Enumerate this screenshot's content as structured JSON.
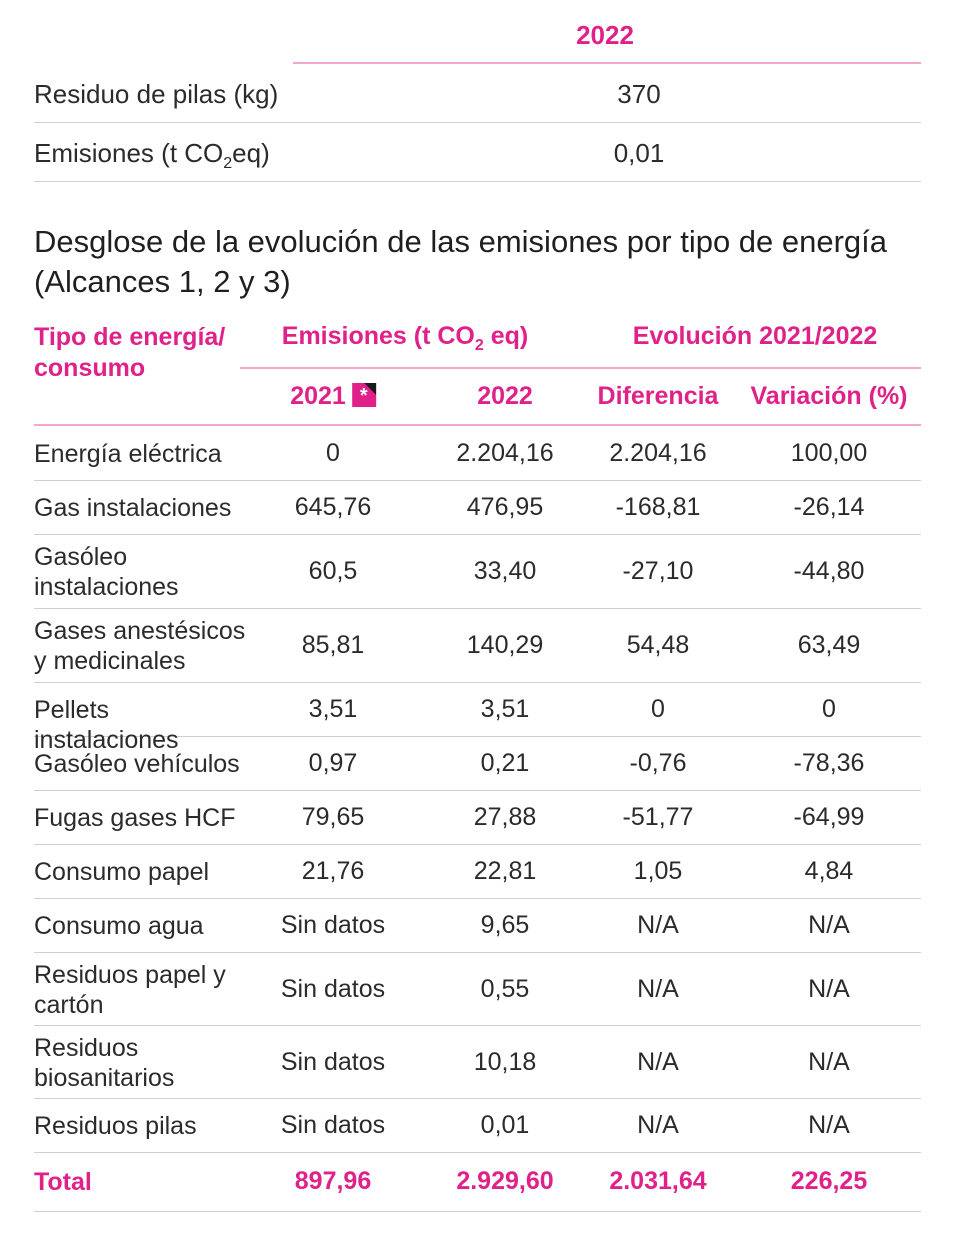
{
  "top_table": {
    "year": "2022",
    "row1_label": "Residuo de pilas (kg)",
    "row1_value": "370",
    "row2_label_a": "Emisiones (t CO",
    "row2_label_sub": "2",
    "row2_label_b": "eq)",
    "row2_value": "0,01"
  },
  "section_title": "Desglose de la evolución de las emisiones por tipo de energía (Alcances 1, 2 y 3)",
  "headers": {
    "tipo": "Tipo de energía/ consumo",
    "emisiones_a": "Emisiones (t CO",
    "emisiones_sub": "2",
    "emisiones_b": " eq)",
    "evolucion": "Evolución 2021/2022",
    "y2021": "2021",
    "y2022": "2022",
    "diferencia": "Diferencia",
    "variacion": "Variación (%)",
    "note_symbol": "*"
  },
  "rows": [
    {
      "label": "Energía eléctrica",
      "y2021": "0",
      "y2022": "2.204,16",
      "dif": "2.204,16",
      "var": "100,00"
    },
    {
      "label": "Gas instalaciones",
      "y2021": "645,76",
      "y2022": "476,95",
      "dif": "-168,81",
      "var": "-26,14"
    },
    {
      "label": "Gasóleo instalaciones",
      "y2021": "60,5",
      "y2022": "33,40",
      "dif": "-27,10",
      "var": "-44,80"
    },
    {
      "label": "Gases anestésicos y medicinales",
      "y2021": "85,81",
      "y2022": "140,29",
      "dif": "54,48",
      "var": "63,49"
    },
    {
      "label": "Pellets instalaciones",
      "y2021": "3,51",
      "y2022": "3,51",
      "dif": "0",
      "var": "0"
    },
    {
      "label": "Gasóleo vehículos",
      "y2021": "0,97",
      "y2022": "0,21",
      "dif": "-0,76",
      "var": "-78,36"
    },
    {
      "label": "Fugas gases HCF",
      "y2021": "79,65",
      "y2022": "27,88",
      "dif": "-51,77",
      "var": "-64,99"
    },
    {
      "label": "Consumo papel",
      "y2021": "21,76",
      "y2022": "22,81",
      "dif": "1,05",
      "var": "4,84"
    },
    {
      "label": "Consumo agua",
      "y2021": "Sin datos",
      "y2022": "9,65",
      "dif": "N/A",
      "var": "N/A"
    },
    {
      "label": "Residuos papel y cartón",
      "y2021": "Sin datos",
      "y2022": "0,55",
      "dif": "N/A",
      "var": "N/A"
    },
    {
      "label": "Residuos biosanitarios",
      "y2021": "Sin datos",
      "y2022": "10,18",
      "dif": "N/A",
      "var": "N/A"
    },
    {
      "label": "Residuos pilas",
      "y2021": "Sin datos",
      "y2022": "0,01",
      "dif": "N/A",
      "var": "N/A"
    }
  ],
  "total": {
    "label": "Total",
    "y2021": "897,96",
    "y2022": "2.929,60",
    "dif": "2.031,64",
    "var": "226,25"
  },
  "colors": {
    "accent": "#e0218a",
    "accent_light": "#f4a6cf",
    "divider": "#cfcfcf"
  }
}
